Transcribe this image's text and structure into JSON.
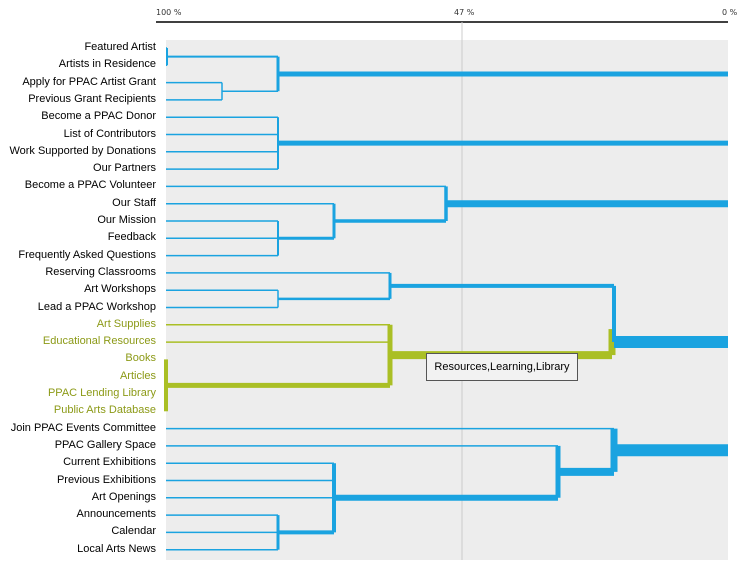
{
  "axis": {
    "left_label": "100 %",
    "mid_label": "47 %",
    "right_label": "0 %"
  },
  "colors": {
    "cluster": "#1aa3e0",
    "highlight": "#aabf25",
    "panel": "#ededed",
    "guide": "#cccccc"
  },
  "items": [
    "Featured Artist",
    "Artists in Residence",
    "Apply for PPAC Artist Grant",
    "Previous Grant Recipients",
    "Become a PPAC Donor",
    "List of Contributors",
    "Work Supported by Donations",
    "Our Partners",
    "Become a PPAC Volunteer",
    "Our Staff",
    "Our Mission",
    "Feedback",
    "Frequently Asked Questions",
    "Reserving Classrooms",
    "Art Workshops",
    "Lead a PPAC Workshop",
    "Art Supplies",
    "Educational Resources",
    "Books",
    "Articles",
    "PPAC Lending Library",
    "Public Arts Database",
    "Join PPAC Events Committee",
    "PPAC Gallery Space",
    "Current Exhibitions",
    "Previous Exhibitions",
    "Art Openings",
    "Announcements",
    "Calendar",
    "Local Arts News"
  ],
  "highlighted_items": [
    16,
    17,
    18,
    19,
    20,
    21
  ],
  "tooltip": "Resources,Learning,Library"
}
